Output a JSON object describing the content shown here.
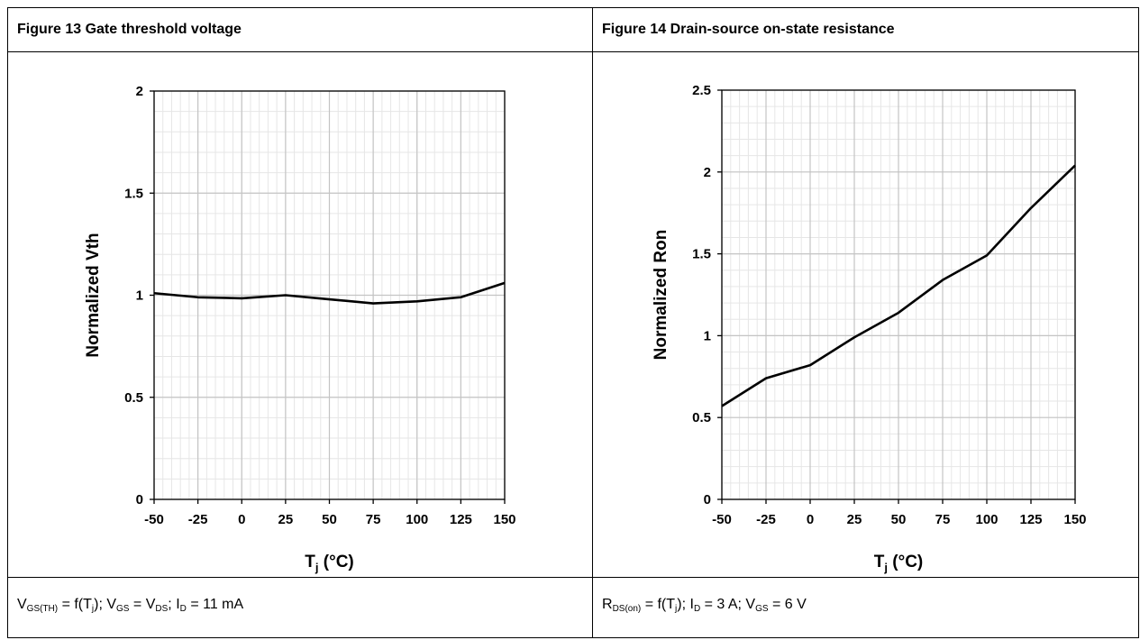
{
  "charts_header": {
    "left_title": "Figure 13 Gate threshold voltage",
    "right_title": "Figure 14 Drain-source on-state resistance"
  },
  "footnotes": {
    "left": {
      "p1": "V",
      "s1": "GS(TH)",
      "p2": " = f(T",
      "s2": "j",
      "p3": "); V",
      "s3": "GS",
      "p4": " = V",
      "s4": "DS",
      "p5": "; I",
      "s5": "D",
      "p6": " = 11 mA"
    },
    "right": {
      "p1": "R",
      "s1": "DS(on)",
      "p2": " = f(T",
      "s2": "j",
      "p3": "); I",
      "s3": "D",
      "p4": " = 3 A; V",
      "s4": "GS",
      "p5": " = 6 V"
    }
  },
  "chart_data": [
    {
      "type": "line",
      "title": "Figure 13 Gate threshold voltage",
      "xlabel": "Tj (°C)",
      "xlabel_main": "T",
      "xlabel_sub": "j",
      "xlabel_unit": " (°C)",
      "ylabel": "Normalized Vth",
      "xlim": [
        -50,
        150
      ],
      "ylim": [
        0,
        2
      ],
      "xticks": [
        -50,
        -25,
        0,
        25,
        50,
        75,
        100,
        125,
        150
      ],
      "yticks": [
        0,
        0.5,
        1,
        1.5,
        2
      ],
      "ytick_labels": [
        "0",
        "0.5",
        "1",
        "1.5",
        "2"
      ],
      "grid": true,
      "x": [
        -50,
        -25,
        0,
        25,
        50,
        75,
        100,
        125,
        150
      ],
      "y": [
        1.01,
        0.99,
        0.985,
        1.0,
        0.98,
        0.96,
        0.97,
        0.99,
        1.06
      ]
    },
    {
      "type": "line",
      "title": "Figure 14 Drain-source on-state resistance",
      "xlabel": "Tj (°C)",
      "xlabel_main": "T",
      "xlabel_sub": "j",
      "xlabel_unit": " (°C)",
      "ylabel": "Normalized Ron",
      "xlim": [
        -50,
        150
      ],
      "ylim": [
        0,
        2.5
      ],
      "xticks": [
        -50,
        -25,
        0,
        25,
        50,
        75,
        100,
        125,
        150
      ],
      "yticks": [
        0,
        0.5,
        1,
        1.5,
        2,
        2.5
      ],
      "ytick_labels": [
        "0",
        "0.5",
        "1",
        "1.5",
        "2",
        "2.5"
      ],
      "grid": true,
      "x": [
        -50,
        -25,
        0,
        25,
        50,
        75,
        100,
        125,
        150
      ],
      "y": [
        0.57,
        0.74,
        0.82,
        0.99,
        1.14,
        1.34,
        1.49,
        1.78,
        2.04
      ]
    }
  ]
}
